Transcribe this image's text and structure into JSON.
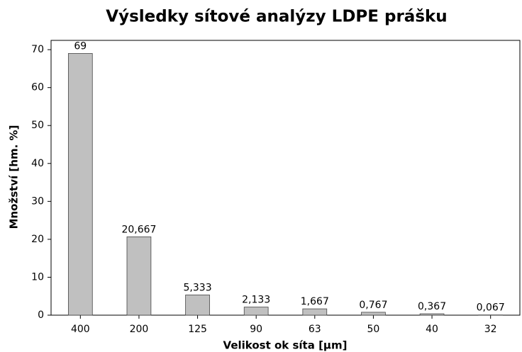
{
  "chart_data": {
    "type": "bar",
    "title": "Výsledky sítové analýzy LDPE prášku",
    "x_label": "Velikost ok síta [µm]",
    "y_label": "Množství [hm. %]",
    "categories": [
      "400",
      "200",
      "125",
      "90",
      "63",
      "50",
      "40",
      "32"
    ],
    "values": [
      69,
      20.667,
      5.333,
      2.133,
      1.667,
      0.767,
      0.367,
      0.067
    ],
    "value_labels": [
      "69",
      "20,667",
      "5,333",
      "2,133",
      "1,667",
      "0,767",
      "0,367",
      "0,067"
    ],
    "color": "#c0c0c0",
    "ylim": [
      0,
      72.45
    ],
    "yticks": [
      0,
      10,
      20,
      30,
      40,
      50,
      60,
      70
    ],
    "grid": false
  }
}
